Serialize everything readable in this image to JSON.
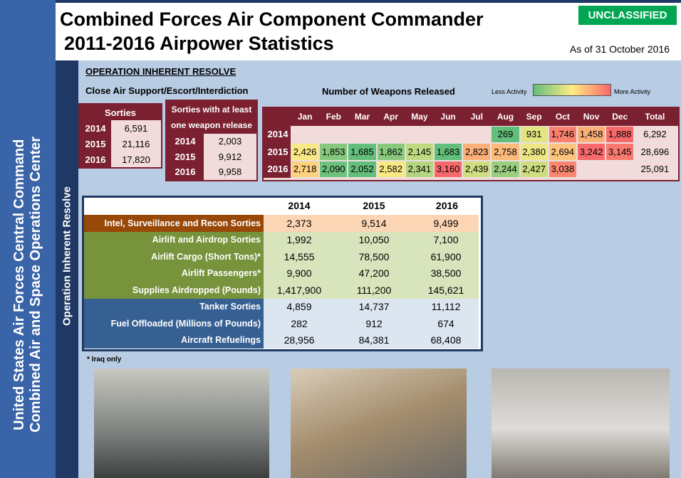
{
  "sidebar": {
    "line1": "United States Air Forces Central Command",
    "line2": "Combined Air and Space Operations Center",
    "operation": "Operation Inherent Resolve"
  },
  "header": {
    "title_line1": "Combined Forces Air Component Commander",
    "title_line2": "2011-2016 Airpower Statistics",
    "classification": "UNCLASSIFIED",
    "as_of": "As of 31 October 2016"
  },
  "section": {
    "heading": "OPERATION INHERENT RESOLVE",
    "subheading": "Close Air Support/Escort/Interdiction",
    "weapons_heading": "Number of Weapons Released",
    "legend_low": "Less Activity",
    "legend_high": "More Activity"
  },
  "sorties": {
    "title": "Sorties",
    "rows": [
      [
        "2014",
        "6,591"
      ],
      [
        "2015",
        "21,116"
      ],
      [
        "2016",
        "17,820"
      ]
    ]
  },
  "weapon_release_sorties": {
    "title": "Sorties with at least one weapon release",
    "rows": [
      [
        "2014",
        "2,003"
      ],
      [
        "2015",
        "9,912"
      ],
      [
        "2016",
        "9,958"
      ]
    ]
  },
  "weapons": {
    "columns": [
      "Jan",
      "Feb",
      "Mar",
      "Apr",
      "May",
      "Jun",
      "Jul",
      "Aug",
      "Sep",
      "Oct",
      "Nov",
      "Dec",
      "Total"
    ],
    "rows": [
      {
        "year": "2014",
        "cells": [
          null,
          null,
          null,
          null,
          null,
          null,
          null,
          "269",
          "931",
          "1,746",
          "1,458",
          "1,888",
          "6,292"
        ]
      },
      {
        "year": "2015",
        "cells": [
          "2,426",
          "1,853",
          "1,685",
          "1,862",
          "2,145",
          "1,683",
          "2,823",
          "2,758",
          "2,380",
          "2,694",
          "3,242",
          "3,145",
          "28,696"
        ]
      },
      {
        "year": "2016",
        "cells": [
          "2,718",
          "2,090",
          "2,052",
          "2,582",
          "2,341",
          "3,160",
          "2,439",
          "2,244",
          "2,427",
          "3,038",
          null,
          null,
          "25,091"
        ]
      }
    ]
  },
  "stats_table": {
    "columns": [
      "2014",
      "2015",
      "2016"
    ],
    "rows": [
      {
        "label": "Intel, Surveillance and Recon Sorties",
        "color": "#984807",
        "cell_color": "#fcd5b4",
        "values": [
          "2,373",
          "9,514",
          "9,499"
        ]
      },
      {
        "label": "Airlift and Airdrop Sorties",
        "color": "#77933c",
        "cell_color": "#d8e4bc",
        "values": [
          "1,992",
          "10,050",
          "7,100"
        ]
      },
      {
        "label": "Airlift Cargo (Short Tons)*",
        "color": "#77933c",
        "cell_color": "#d8e4bc",
        "values": [
          "14,555",
          "78,500",
          "61,900"
        ]
      },
      {
        "label": "Airlift Passengers*",
        "color": "#77933c",
        "cell_color": "#d8e4bc",
        "values": [
          "9,900",
          "47,200",
          "38,500"
        ]
      },
      {
        "label": "Supplies Airdropped (Pounds)",
        "color": "#77933c",
        "cell_color": "#d8e4bc",
        "values": [
          "1,417,900",
          "111,200",
          "145,621"
        ]
      },
      {
        "label": "Tanker Sorties",
        "color": "#366092",
        "cell_color": "#dce6f1",
        "values": [
          "4,859",
          "14,737",
          "11,112"
        ]
      },
      {
        "label": "Fuel Offloaded (Millions of Pounds)",
        "color": "#366092",
        "cell_color": "#dce6f1",
        "values": [
          "282",
          "912",
          "674"
        ]
      },
      {
        "label": "Aircraft Refuelings",
        "color": "#366092",
        "cell_color": "#dce6f1",
        "values": [
          "28,956",
          "84,381",
          "68,408"
        ]
      }
    ]
  },
  "footnote": "* Iraq only"
}
